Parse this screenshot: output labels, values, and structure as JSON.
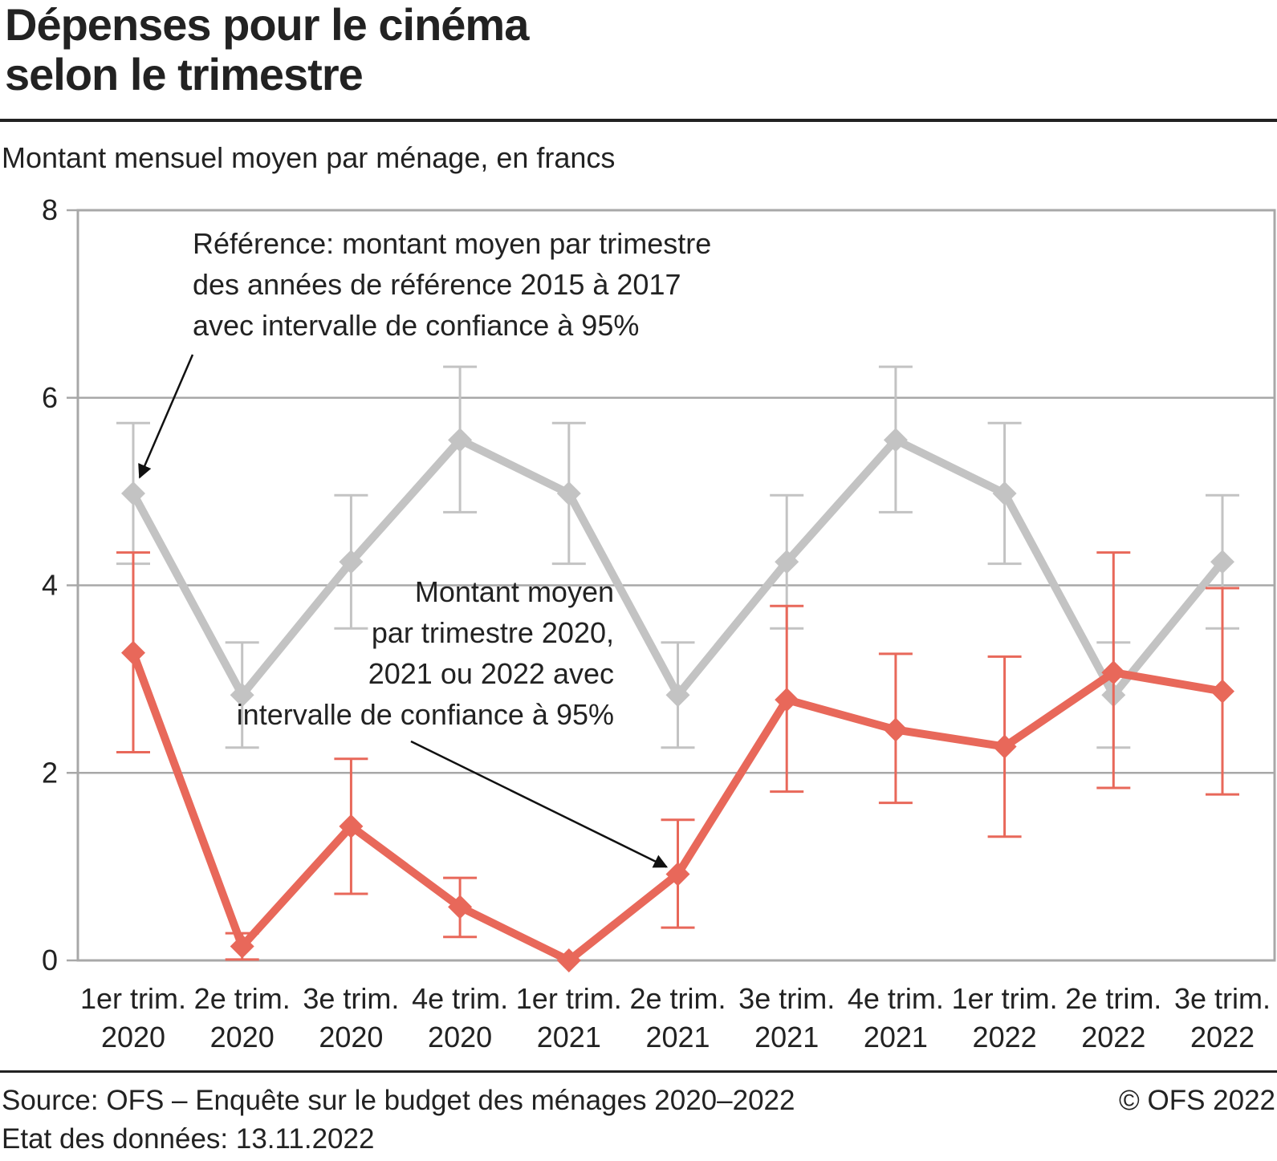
{
  "header": {
    "title_line1": "Dépenses pour le cinéma",
    "title_line2": "selon le trimestre",
    "subtitle": "Montant mensuel moyen par ménage, en francs"
  },
  "footer": {
    "source": "Source: OFS – Enquête sur le budget des ménages 2020–2022",
    "data_state": "Etat des données: 13.11.2022",
    "copyright": "© OFS 2022"
  },
  "colors": {
    "reference": "#c3c3c3",
    "current": "#e8685a",
    "grid": "#a8a8a8",
    "arrow": "#111111"
  },
  "chart_data": {
    "type": "line",
    "ylim": [
      0,
      8
    ],
    "yticks": [
      "0",
      "2",
      "4",
      "6",
      "8"
    ],
    "grid": true,
    "categories": [
      [
        "1er trim.",
        "2020"
      ],
      [
        "2e trim.",
        "2020"
      ],
      [
        "3e trim.",
        "2020"
      ],
      [
        "4e trim.",
        "2020"
      ],
      [
        "1er trim.",
        "2021"
      ],
      [
        "2e trim.",
        "2021"
      ],
      [
        "3e trim.",
        "2021"
      ],
      [
        "4e trim.",
        "2021"
      ],
      [
        "1er trim.",
        "2022"
      ],
      [
        "2e trim.",
        "2022"
      ],
      [
        "3e trim.",
        "2022"
      ]
    ],
    "series": [
      {
        "key": "reference",
        "values": [
          4.98,
          2.83,
          4.25,
          5.55,
          4.98,
          2.83,
          4.25,
          5.55,
          4.98,
          2.83,
          4.25
        ],
        "ci_low": [
          4.23,
          2.27,
          3.54,
          4.78,
          4.23,
          2.27,
          3.54,
          4.78,
          4.23,
          2.27,
          3.54
        ],
        "ci_high": [
          5.73,
          3.39,
          4.96,
          6.33,
          5.73,
          3.39,
          4.96,
          6.33,
          5.73,
          3.39,
          4.96
        ]
      },
      {
        "key": "current",
        "values": [
          3.28,
          0.15,
          1.43,
          0.57,
          0.0,
          0.92,
          2.78,
          2.46,
          2.28,
          3.07,
          2.87
        ],
        "ci_low": [
          2.22,
          0.01,
          0.71,
          0.25,
          0.0,
          0.35,
          1.8,
          1.68,
          1.32,
          1.84,
          1.77
        ],
        "ci_high": [
          4.35,
          0.29,
          2.15,
          0.88,
          0.0,
          1.5,
          3.78,
          3.27,
          3.24,
          4.35,
          3.97
        ]
      }
    ],
    "annotations": [
      {
        "target_series": "reference",
        "target_index": 0,
        "align": "start",
        "lines": [
          "Référence: montant moyen par trimestre",
          "des années de référence 2015 à 2017",
          "avec intervalle de confiance à 95%"
        ]
      },
      {
        "target_series": "current",
        "target_index": 5,
        "align": "end",
        "lines": [
          "Montant moyen",
          "par trimestre 2020,",
          "2021 ou 2022 avec",
          "intervalle de confiance à 95%"
        ]
      }
    ]
  }
}
